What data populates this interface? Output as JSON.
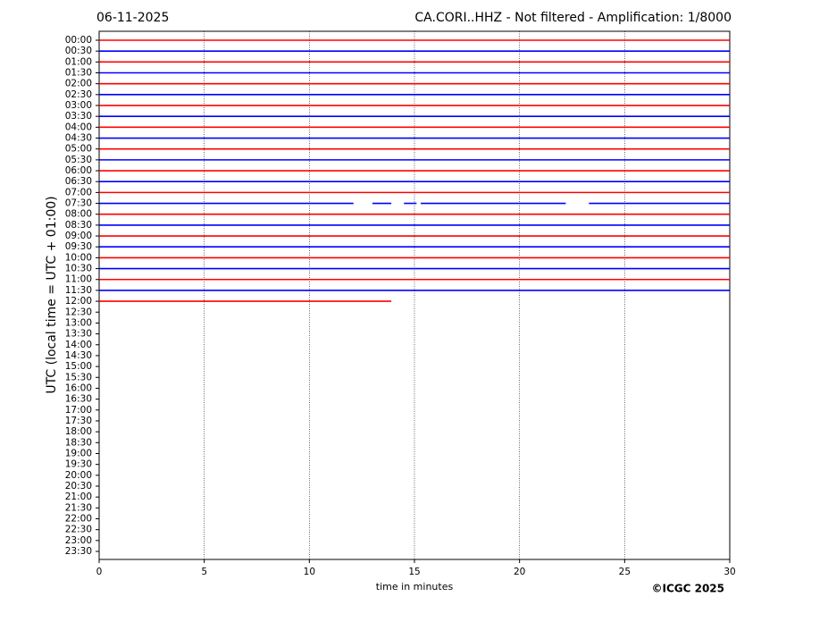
{
  "chart_data": {
    "type": "helicorder",
    "title_left": "06-11-2025",
    "title_right": "CA.CORI..HHZ - Not filtered - Amplification: 1/8000",
    "ylabel": "UTC (local time = UTC + 01:00)",
    "xlabel": "time in minutes",
    "credit": "©ICGC 2025",
    "xlim": [
      0,
      30
    ],
    "xticks": [
      0,
      5,
      10,
      15,
      20,
      25,
      30
    ],
    "grid": true,
    "categories": [
      "00:00",
      "00:30",
      "01:00",
      "01:30",
      "02:00",
      "02:30",
      "03:00",
      "03:30",
      "04:00",
      "04:30",
      "05:00",
      "05:30",
      "06:00",
      "06:30",
      "07:00",
      "07:30",
      "08:00",
      "08:30",
      "09:00",
      "09:30",
      "10:00",
      "10:30",
      "11:00",
      "11:30",
      "12:00",
      "12:30",
      "13:00",
      "13:30",
      "14:00",
      "14:30",
      "15:00",
      "15:30",
      "16:00",
      "16:30",
      "17:00",
      "17:30",
      "18:00",
      "18:30",
      "19:00",
      "19:30",
      "20:00",
      "20:30",
      "21:00",
      "21:30",
      "22:00",
      "22:30",
      "23:00",
      "23:30"
    ],
    "traces": [
      {
        "color": "#ff0000",
        "segments": [
          [
            0,
            30
          ]
        ]
      },
      {
        "color": "#0000ff",
        "segments": [
          [
            0,
            30
          ]
        ]
      },
      {
        "color": "#ff0000",
        "segments": [
          [
            0,
            30
          ]
        ]
      },
      {
        "color": "#0000ff",
        "segments": [
          [
            0,
            30
          ]
        ]
      },
      {
        "color": "#ff0000",
        "segments": [
          [
            0,
            30
          ]
        ]
      },
      {
        "color": "#0000ff",
        "segments": [
          [
            0,
            30
          ]
        ]
      },
      {
        "color": "#ff0000",
        "segments": [
          [
            0,
            30
          ]
        ]
      },
      {
        "color": "#0000ff",
        "segments": [
          [
            0,
            30
          ]
        ]
      },
      {
        "color": "#ff0000",
        "segments": [
          [
            0,
            30
          ]
        ]
      },
      {
        "color": "#0000ff",
        "segments": [
          [
            0,
            30
          ]
        ]
      },
      {
        "color": "#ff0000",
        "segments": [
          [
            0,
            30
          ]
        ]
      },
      {
        "color": "#0000ff",
        "segments": [
          [
            0,
            30
          ]
        ]
      },
      {
        "color": "#ff0000",
        "segments": [
          [
            0,
            30
          ]
        ]
      },
      {
        "color": "#0000ff",
        "segments": [
          [
            0,
            30
          ]
        ]
      },
      {
        "color": "#ff0000",
        "segments": [
          [
            0,
            30
          ]
        ]
      },
      {
        "color": "#0000ff",
        "segments": [
          [
            0,
            12.1
          ],
          [
            13,
            13.9
          ],
          [
            14.5,
            15.1
          ],
          [
            15.3,
            22.2
          ],
          [
            23.3,
            30
          ]
        ]
      },
      {
        "color": "#ff0000",
        "segments": [
          [
            0,
            30
          ]
        ]
      },
      {
        "color": "#0000ff",
        "segments": [
          [
            0,
            30
          ]
        ]
      },
      {
        "color": "#ff0000",
        "segments": [
          [
            0,
            30
          ]
        ]
      },
      {
        "color": "#0000ff",
        "segments": [
          [
            0,
            30
          ]
        ]
      },
      {
        "color": "#ff0000",
        "segments": [
          [
            0,
            30
          ]
        ]
      },
      {
        "color": "#0000ff",
        "segments": [
          [
            0,
            30
          ]
        ]
      },
      {
        "color": "#ff0000",
        "segments": [
          [
            0,
            30
          ]
        ]
      },
      {
        "color": "#0000ff",
        "segments": [
          [
            0,
            30
          ]
        ]
      },
      {
        "color": "#ff0000",
        "segments": [
          [
            0,
            13.9
          ]
        ]
      }
    ]
  }
}
